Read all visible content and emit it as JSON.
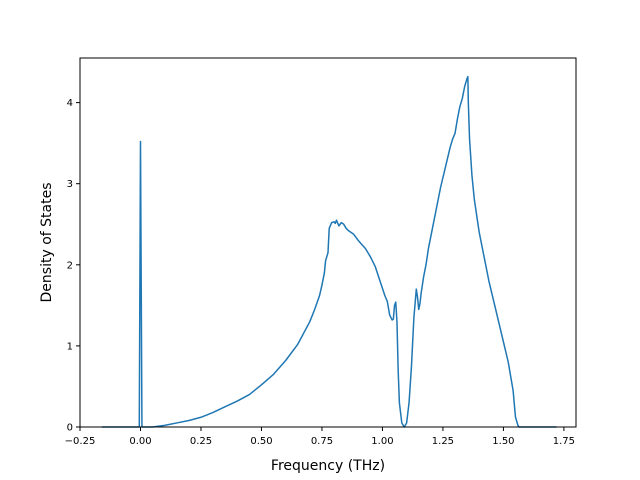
{
  "chart_data": {
    "type": "line",
    "title": "",
    "xlabel": "Frequency (THz)",
    "ylabel": "Density of States",
    "xlim": [
      -0.25,
      1.8
    ],
    "ylim": [
      0,
      4.55
    ],
    "xticks": [
      -0.25,
      0.0,
      0.25,
      0.5,
      0.75,
      1.0,
      1.25,
      1.5,
      1.75
    ],
    "xtick_labels": [
      "−0.25",
      "0.00",
      "0.25",
      "0.50",
      "0.75",
      "1.00",
      "1.25",
      "1.50",
      "1.75"
    ],
    "yticks": [
      0,
      1,
      2,
      3,
      4
    ],
    "ytick_labels": [
      "0",
      "1",
      "2",
      "3",
      "4"
    ],
    "grid": false,
    "color": "#1f77b4",
    "series": [
      {
        "x": [
          -0.16,
          -0.01,
          -0.005,
          0.0,
          0.006,
          0.012,
          0.05,
          0.1,
          0.15,
          0.2,
          0.25,
          0.3,
          0.35,
          0.4,
          0.45,
          0.5,
          0.55,
          0.6,
          0.65,
          0.7,
          0.72,
          0.74,
          0.75,
          0.76,
          0.765,
          0.775,
          0.78,
          0.79,
          0.8,
          0.805,
          0.81,
          0.82,
          0.83,
          0.84,
          0.85,
          0.86,
          0.87,
          0.88,
          0.9,
          0.93,
          0.95,
          0.97,
          0.99,
          1.01,
          1.02,
          1.03,
          1.04,
          1.045,
          1.05,
          1.055,
          1.06,
          1.065,
          1.07,
          1.08,
          1.09,
          1.1,
          1.11,
          1.12,
          1.13,
          1.14,
          1.145,
          1.15,
          1.155,
          1.16,
          1.17,
          1.18,
          1.19,
          1.2,
          1.22,
          1.24,
          1.26,
          1.28,
          1.29,
          1.3,
          1.31,
          1.32,
          1.33,
          1.34,
          1.345,
          1.35,
          1.353,
          1.355,
          1.36,
          1.37,
          1.38,
          1.39,
          1.4,
          1.42,
          1.44,
          1.46,
          1.48,
          1.5,
          1.52,
          1.54,
          1.55,
          1.56,
          1.565,
          1.57,
          1.58,
          1.6,
          1.72
        ],
        "y": [
          0,
          0,
          0,
          3.52,
          0,
          0,
          0,
          0.02,
          0.05,
          0.08,
          0.12,
          0.18,
          0.25,
          0.32,
          0.4,
          0.52,
          0.65,
          0.82,
          1.02,
          1.3,
          1.45,
          1.62,
          1.75,
          1.9,
          2.05,
          2.15,
          2.45,
          2.52,
          2.53,
          2.51,
          2.55,
          2.48,
          2.52,
          2.5,
          2.45,
          2.42,
          2.4,
          2.38,
          2.3,
          2.2,
          2.1,
          1.98,
          1.8,
          1.62,
          1.55,
          1.38,
          1.32,
          1.33,
          1.5,
          1.54,
          1.3,
          0.7,
          0.3,
          0.05,
          0.0,
          0.05,
          0.3,
          0.75,
          1.35,
          1.7,
          1.6,
          1.45,
          1.52,
          1.65,
          1.85,
          2.0,
          2.2,
          2.35,
          2.65,
          2.95,
          3.2,
          3.45,
          3.55,
          3.62,
          3.8,
          3.95,
          4.05,
          4.2,
          4.25,
          4.3,
          4.32,
          4.0,
          3.55,
          3.1,
          2.8,
          2.6,
          2.4,
          2.1,
          1.8,
          1.55,
          1.3,
          1.05,
          0.8,
          0.45,
          0.12,
          0.02,
          0.0,
          0.0,
          0.0,
          0.0,
          0.0
        ]
      }
    ]
  }
}
